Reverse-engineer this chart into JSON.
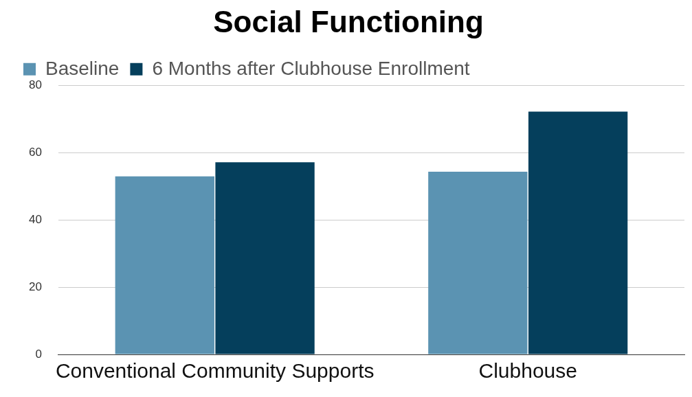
{
  "chart_data": {
    "type": "bar",
    "title": "Social Functioning",
    "categories": [
      "Conventional Community Supports",
      "Clubhouse"
    ],
    "series": [
      {
        "name": "Baseline",
        "color": "#5b93b2",
        "values": [
          53,
          54.4
        ]
      },
      {
        "name": "6 Months after Clubhouse Enrollment",
        "color": "#053f5c",
        "values": [
          57.2,
          72.3
        ]
      }
    ],
    "ylim": [
      0,
      80
    ],
    "yticks": [
      0,
      20,
      40,
      60,
      80
    ],
    "grid": "y",
    "legend": "top left"
  }
}
